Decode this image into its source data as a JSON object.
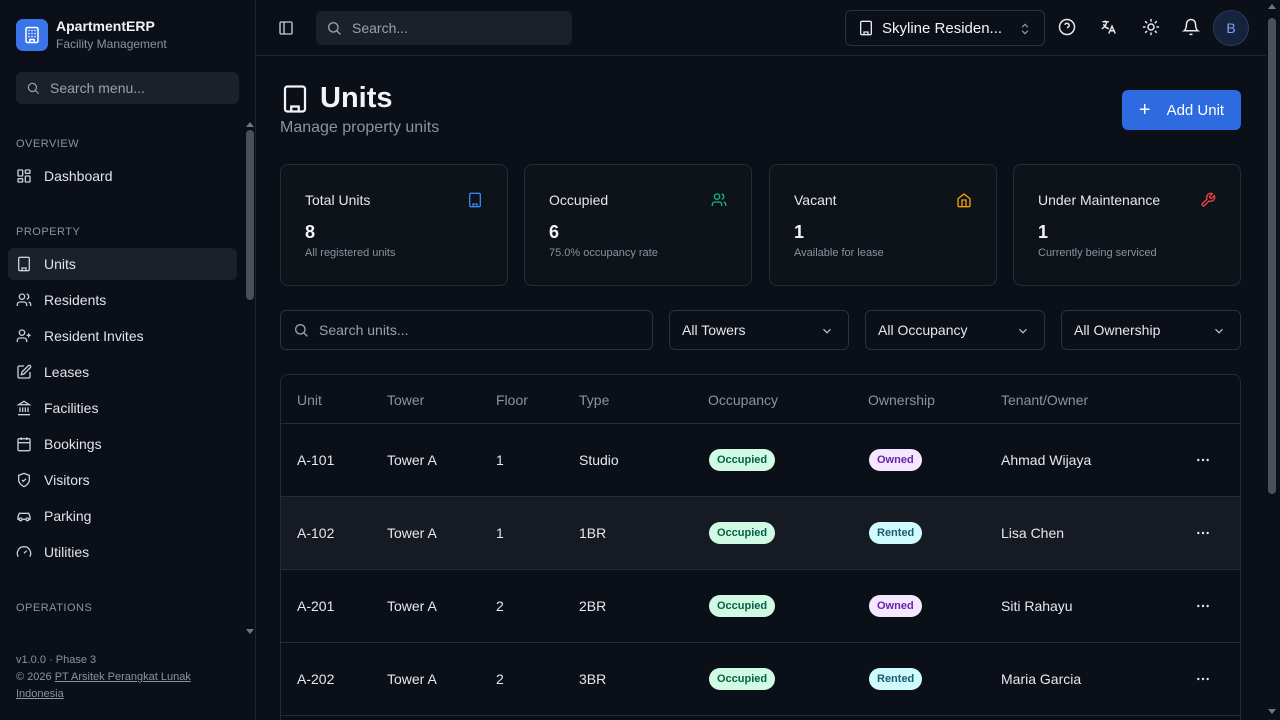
{
  "brand": {
    "name": "ApartmentERP",
    "subtitle": "Facility Management"
  },
  "sidebar": {
    "search_placeholder": "Search menu...",
    "sections": {
      "overview": "OVERVIEW",
      "property": "PROPERTY",
      "operations": "OPERATIONS"
    },
    "items": [
      {
        "label": "Dashboard",
        "icon": "dashboard-icon"
      },
      {
        "label": "Units",
        "icon": "building-icon",
        "active": true
      },
      {
        "label": "Residents",
        "icon": "users-icon"
      },
      {
        "label": "Resident Invites",
        "icon": "user-plus-icon"
      },
      {
        "label": "Leases",
        "icon": "file-edit-icon"
      },
      {
        "label": "Facilities",
        "icon": "landmark-icon"
      },
      {
        "label": "Bookings",
        "icon": "calendar-icon"
      },
      {
        "label": "Visitors",
        "icon": "shield-check-icon"
      },
      {
        "label": "Parking",
        "icon": "car-icon"
      },
      {
        "label": "Utilities",
        "icon": "gauge-icon"
      }
    ],
    "footer": {
      "version": "v1.0.0 · Phase 3",
      "copyright": "© 2026",
      "company": "PT Arsitek Perangkat Lunak Indonesia"
    }
  },
  "topbar": {
    "search_placeholder": "Search...",
    "property_name": "Skyline Residen...",
    "avatar_initial": "B"
  },
  "page": {
    "title": "Units",
    "subtitle": "Manage property units",
    "add_button": "Add Unit"
  },
  "stats": [
    {
      "label": "Total Units",
      "value": "8",
      "note": "All registered units",
      "icon": "building-icon",
      "color": "#3b82f6"
    },
    {
      "label": "Occupied",
      "value": "6",
      "note": "75.0% occupancy rate",
      "icon": "users-icon",
      "color": "#10b981"
    },
    {
      "label": "Vacant",
      "value": "1",
      "note": "Available for lease",
      "icon": "home-icon",
      "color": "#f59e0b"
    },
    {
      "label": "Under Maintenance",
      "value": "1",
      "note": "Currently being serviced",
      "icon": "wrench-icon",
      "color": "#ef4444"
    }
  ],
  "filters": {
    "search_placeholder": "Search units...",
    "tower": "All Towers",
    "occupancy": "All Occupancy",
    "ownership": "All Ownership"
  },
  "table": {
    "headers": [
      "Unit",
      "Tower",
      "Floor",
      "Type",
      "Occupancy",
      "Ownership",
      "Tenant/Owner"
    ],
    "rows": [
      {
        "unit": "A-101",
        "tower": "Tower A",
        "floor": "1",
        "type": "Studio",
        "occupancy": "Occupied",
        "ownership": "Owned",
        "tenant": "Ahmad Wijaya"
      },
      {
        "unit": "A-102",
        "tower": "Tower A",
        "floor": "1",
        "type": "1BR",
        "occupancy": "Occupied",
        "ownership": "Rented",
        "tenant": "Lisa Chen"
      },
      {
        "unit": "A-201",
        "tower": "Tower A",
        "floor": "2",
        "type": "2BR",
        "occupancy": "Occupied",
        "ownership": "Owned",
        "tenant": "Siti Rahayu"
      },
      {
        "unit": "A-202",
        "tower": "Tower A",
        "floor": "2",
        "type": "3BR",
        "occupancy": "Occupied",
        "ownership": "Rented",
        "tenant": "Maria Garcia"
      }
    ]
  }
}
